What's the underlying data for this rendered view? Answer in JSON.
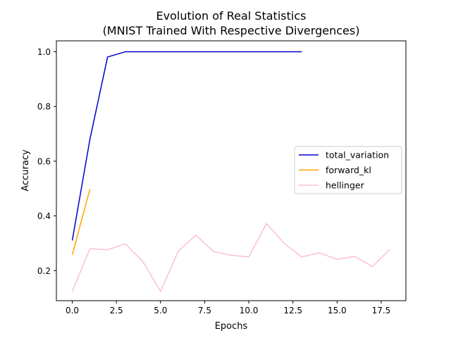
{
  "chart_data": {
    "type": "line",
    "title": [
      "Evolution of Real Statistics",
      "(MNIST Trained With Respective Divergences)"
    ],
    "xlabel": "Epochs",
    "ylabel": "Accuracy",
    "xlim": [
      -0.9,
      18.9
    ],
    "ylim": [
      0.09,
      1.04
    ],
    "xticks": [
      0,
      2.5,
      5,
      7.5,
      10,
      12.5,
      15,
      17.5
    ],
    "xtick_labels": [
      "0.0",
      "2.5",
      "5.0",
      "7.5",
      "10.0",
      "12.5",
      "15.0",
      "17.5"
    ],
    "yticks": [
      0.2,
      0.4,
      0.6,
      0.8,
      1.0
    ],
    "ytick_labels": [
      "0.2",
      "0.4",
      "0.6",
      "0.8",
      "1.0"
    ],
    "grid": false,
    "legend_position": "center-right",
    "series": [
      {
        "name": "total_variation",
        "color": "#0000cd",
        "x": [
          0,
          1,
          2,
          3,
          4,
          5,
          6,
          7,
          8,
          9,
          10,
          11,
          12,
          13
        ],
        "y": [
          0.31,
          0.68,
          0.981,
          1.0,
          1.0,
          1.0,
          1.0,
          1.0,
          1.0,
          1.0,
          1.0,
          1.0,
          1.0,
          1.0
        ]
      },
      {
        "name": "forward_kl",
        "color": "#ffa500",
        "x": [
          0,
          1
        ],
        "y": [
          0.258,
          0.498
        ]
      },
      {
        "name": "hellinger",
        "color": "#ffc0cb",
        "x": [
          0,
          1,
          2,
          3,
          4,
          5,
          6,
          7,
          8,
          9,
          10,
          11,
          12,
          13,
          14,
          15,
          16,
          17,
          18
        ],
        "y": [
          0.124,
          0.28,
          0.276,
          0.298,
          0.233,
          0.124,
          0.27,
          0.33,
          0.27,
          0.256,
          0.25,
          0.372,
          0.3,
          0.25,
          0.265,
          0.241,
          0.252,
          0.215,
          0.278
        ]
      }
    ]
  }
}
